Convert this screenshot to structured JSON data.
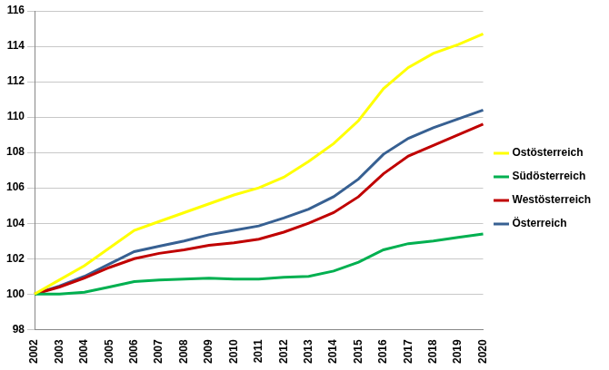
{
  "chart_data": {
    "type": "line",
    "categories": [
      "2002",
      "2003",
      "2004",
      "2005",
      "2006",
      "2007",
      "2008",
      "2009",
      "2010",
      "2011",
      "2012",
      "2013",
      "2014",
      "2015",
      "2016",
      "2017",
      "2018",
      "2019",
      "2020"
    ],
    "series": [
      {
        "name": "Ostösterreich",
        "color": "#ffff00",
        "values": [
          100,
          100.8,
          101.6,
          102.6,
          103.6,
          104.1,
          104.6,
          105.1,
          105.6,
          106.0,
          106.6,
          107.5,
          108.5,
          109.8,
          111.6,
          112.8,
          113.6,
          114.1,
          114.7
        ]
      },
      {
        "name": "Südösterreich",
        "color": "#00b050",
        "values": [
          100,
          100,
          100.1,
          100.4,
          100.7,
          100.8,
          100.85,
          100.9,
          100.85,
          100.85,
          100.95,
          101.0,
          101.3,
          101.8,
          102.5,
          102.85,
          103.0,
          103.2,
          103.4
        ]
      },
      {
        "name": "Westösterreich",
        "color": "#c00000",
        "values": [
          100,
          100.4,
          100.9,
          101.5,
          102.0,
          102.3,
          102.5,
          102.75,
          102.9,
          103.1,
          103.5,
          104.0,
          104.6,
          105.5,
          106.8,
          107.8,
          108.4,
          109.0,
          109.6
        ]
      },
      {
        "name": "Österreich",
        "color": "#376092",
        "values": [
          100,
          100.45,
          101.0,
          101.7,
          102.4,
          102.7,
          103.0,
          103.35,
          103.6,
          103.85,
          104.3,
          104.8,
          105.5,
          106.5,
          107.9,
          108.8,
          109.4,
          109.9,
          110.4
        ]
      }
    ],
    "ylim": [
      98,
      116
    ],
    "yticks": [
      98,
      100,
      102,
      104,
      106,
      108,
      110,
      112,
      114,
      116
    ],
    "grid": true,
    "legend": "right"
  }
}
